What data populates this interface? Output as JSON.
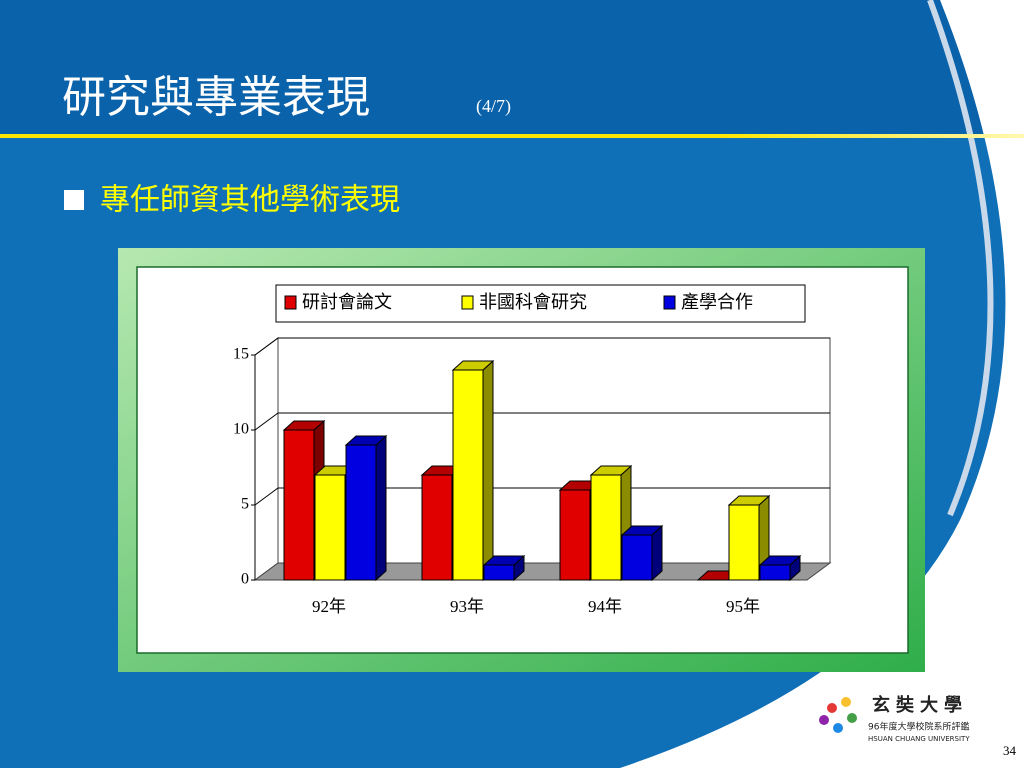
{
  "slide": {
    "title": "研究與專業表現",
    "title_suffix": "(4/7)",
    "bullet": "專任師資其他學術表現",
    "logo_name": "玄奘大學",
    "logo_sub": "96年度大學校院系所評鑑",
    "logo_en": "HSUAN CHUANG UNIVERSITY",
    "page_number": "34"
  },
  "chart_data": {
    "type": "bar3d",
    "categories": [
      "92年",
      "93年",
      "94年",
      "95年"
    ],
    "series": [
      {
        "name": "研討會論文",
        "color": "#e00000",
        "values": [
          10,
          7,
          6,
          0
        ]
      },
      {
        "name": "非國科會研究",
        "color": "#ffff00",
        "values": [
          7,
          14,
          7,
          5
        ]
      },
      {
        "name": "產學合作",
        "color": "#0000e0",
        "values": [
          9,
          1,
          3,
          1
        ]
      }
    ],
    "ylim": [
      0,
      15
    ],
    "yticks": [
      0,
      5,
      10,
      15
    ],
    "grid": true,
    "legend": "top"
  }
}
